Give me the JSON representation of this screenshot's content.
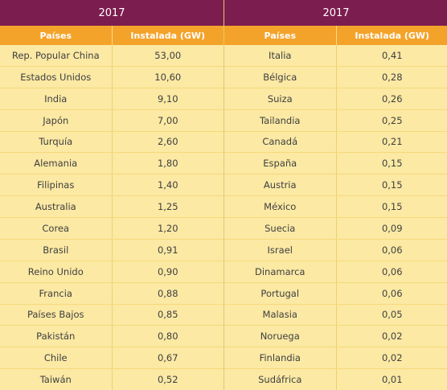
{
  "left": {
    "year": "2017",
    "col_country": "Países",
    "col_capacity": "Instalada (GW)",
    "rows": [
      {
        "country": "Rep. Popular China",
        "gw": "53,00"
      },
      {
        "country": "Estados Unidos",
        "gw": "10,60"
      },
      {
        "country": "India",
        "gw": "9,10"
      },
      {
        "country": "Japón",
        "gw": "7,00"
      },
      {
        "country": "Turquía",
        "gw": "2,60"
      },
      {
        "country": "Alemania",
        "gw": "1,80"
      },
      {
        "country": "Filipinas",
        "gw": "1,40"
      },
      {
        "country": "Australia",
        "gw": "1,25"
      },
      {
        "country": "Corea",
        "gw": "1,20"
      },
      {
        "country": "Brasil",
        "gw": "0,91"
      },
      {
        "country": "Reino Unido",
        "gw": "0,90"
      },
      {
        "country": "Francia",
        "gw": "0,88"
      },
      {
        "country": "Países Bajos",
        "gw": "0,85"
      },
      {
        "country": "Pakistán",
        "gw": "0,80"
      },
      {
        "country": "Chile",
        "gw": "0,67"
      },
      {
        "country": "Taiwán",
        "gw": "0,52"
      }
    ]
  },
  "right": {
    "year": "2017",
    "col_country": "Países",
    "col_capacity": "Instalada (GW)",
    "rows": [
      {
        "country": "Italia",
        "gw": "0,41"
      },
      {
        "country": "Bélgica",
        "gw": "0,28"
      },
      {
        "country": "Suiza",
        "gw": "0,26"
      },
      {
        "country": "Tailandia",
        "gw": "0,25"
      },
      {
        "country": "Canadá",
        "gw": "0,21"
      },
      {
        "country": "España",
        "gw": "0,15"
      },
      {
        "country": "Austria",
        "gw": "0,15"
      },
      {
        "country": "México",
        "gw": "0,15"
      },
      {
        "country": "Suecia",
        "gw": "0,09"
      },
      {
        "country": "Israel",
        "gw": "0,06"
      },
      {
        "country": "Dinamarca",
        "gw": "0,06"
      },
      {
        "country": "Portugal",
        "gw": "0,06"
      },
      {
        "country": "Malasia",
        "gw": "0,05"
      },
      {
        "country": "Noruega",
        "gw": "0,02"
      },
      {
        "country": "Finlandia",
        "gw": "0,02"
      },
      {
        "country": "Sudáfrica",
        "gw": "0,01"
      }
    ]
  },
  "colors": {
    "title_bg": "#7c1d4f",
    "header_bg": "#f4a32a",
    "body_bg": "#fbe9a4"
  }
}
